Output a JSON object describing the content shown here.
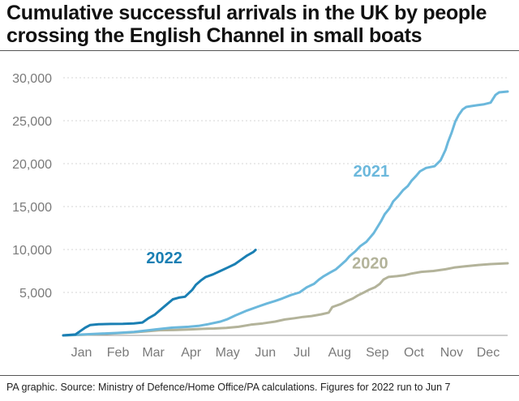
{
  "title": {
    "line1": "Cumulative successful arrivals in the UK by people",
    "line2": "crossing the English Channel in small boats"
  },
  "source": "PA graphic. Source: Ministry of Defence/Home Office/PA calculations. Figures for 2022 run to Jun 7",
  "chart_data": {
    "type": "line",
    "title": "Cumulative successful arrivals in the UK by people crossing the English Channel in small boats",
    "xlabel": "",
    "ylabel": "",
    "x_domain": [
      1,
      366
    ],
    "ylim": [
      0,
      30000
    ],
    "y_ticks": [
      {
        "value": 0,
        "label": ""
      },
      {
        "value": 5000,
        "label": "5,000"
      },
      {
        "value": 10000,
        "label": "10,000"
      },
      {
        "value": 15000,
        "label": "15,000"
      },
      {
        "value": 20000,
        "label": "20,000"
      },
      {
        "value": 25000,
        "label": "25,000"
      },
      {
        "value": 30000,
        "label": "30,000"
      }
    ],
    "x_ticks": [
      {
        "value": 16,
        "label": "Jan"
      },
      {
        "value": 46,
        "label": "Feb"
      },
      {
        "value": 75,
        "label": "Mar"
      },
      {
        "value": 106,
        "label": "Apr"
      },
      {
        "value": 136,
        "label": "May"
      },
      {
        "value": 167,
        "label": "Jun"
      },
      {
        "value": 197,
        "label": "Jul"
      },
      {
        "value": 228,
        "label": "Aug"
      },
      {
        "value": 259,
        "label": "Sep"
      },
      {
        "value": 289,
        "label": "Oct"
      },
      {
        "value": 320,
        "label": "Nov"
      },
      {
        "value": 350,
        "label": "Dec"
      }
    ],
    "grid": true,
    "series": [
      {
        "name": "2020",
        "color": "#b3b39a",
        "label_at": [
          253,
          7800
        ],
        "points": [
          [
            1,
            0
          ],
          [
            15,
            60
          ],
          [
            31,
            150
          ],
          [
            45,
            250
          ],
          [
            59,
            350
          ],
          [
            70,
            480
          ],
          [
            80,
            600
          ],
          [
            92,
            620
          ],
          [
            106,
            700
          ],
          [
            116,
            760
          ],
          [
            125,
            800
          ],
          [
            135,
            880
          ],
          [
            145,
            1000
          ],
          [
            155,
            1250
          ],
          [
            165,
            1400
          ],
          [
            175,
            1600
          ],
          [
            183,
            1850
          ],
          [
            191,
            2000
          ],
          [
            198,
            2150
          ],
          [
            205,
            2250
          ],
          [
            213,
            2450
          ],
          [
            219,
            2650
          ],
          [
            222,
            3300
          ],
          [
            229,
            3650
          ],
          [
            234,
            4000
          ],
          [
            239,
            4300
          ],
          [
            243,
            4650
          ],
          [
            248,
            5000
          ],
          [
            252,
            5300
          ],
          [
            257,
            5600
          ],
          [
            261,
            6000
          ],
          [
            264,
            6500
          ],
          [
            268,
            6800
          ],
          [
            275,
            6900
          ],
          [
            281,
            7000
          ],
          [
            287,
            7200
          ],
          [
            295,
            7400
          ],
          [
            305,
            7500
          ],
          [
            315,
            7700
          ],
          [
            322,
            7900
          ],
          [
            331,
            8050
          ],
          [
            342,
            8200
          ],
          [
            352,
            8300
          ],
          [
            366,
            8400
          ]
        ]
      },
      {
        "name": "2021",
        "color": "#6bb8dc",
        "label_at": [
          254,
          18500
        ],
        "points": [
          [
            1,
            0
          ],
          [
            12,
            80
          ],
          [
            31,
            200
          ],
          [
            45,
            280
          ],
          [
            59,
            400
          ],
          [
            70,
            580
          ],
          [
            77,
            700
          ],
          [
            90,
            900
          ],
          [
            104,
            1000
          ],
          [
            112,
            1100
          ],
          [
            120,
            1300
          ],
          [
            130,
            1600
          ],
          [
            136,
            1900
          ],
          [
            142,
            2300
          ],
          [
            152,
            2900
          ],
          [
            160,
            3300
          ],
          [
            168,
            3700
          ],
          [
            175,
            4000
          ],
          [
            181,
            4300
          ],
          [
            188,
            4700
          ],
          [
            195,
            5000
          ],
          [
            201,
            5600
          ],
          [
            207,
            6000
          ],
          [
            211,
            6500
          ],
          [
            215,
            6900
          ],
          [
            220,
            7300
          ],
          [
            225,
            7700
          ],
          [
            229,
            8200
          ],
          [
            233,
            8700
          ],
          [
            236,
            9200
          ],
          [
            241,
            9800
          ],
          [
            245,
            10400
          ],
          [
            250,
            10900
          ],
          [
            253,
            11400
          ],
          [
            256,
            11900
          ],
          [
            259,
            12600
          ],
          [
            262,
            13300
          ],
          [
            265,
            14100
          ],
          [
            269,
            14800
          ],
          [
            272,
            15600
          ],
          [
            276,
            16200
          ],
          [
            280,
            16900
          ],
          [
            284,
            17400
          ],
          [
            287,
            18000
          ],
          [
            291,
            18600
          ],
          [
            294,
            19100
          ],
          [
            299,
            19500
          ],
          [
            306,
            19700
          ],
          [
            311,
            20400
          ],
          [
            315,
            21600
          ],
          [
            317,
            22500
          ],
          [
            320,
            23600
          ],
          [
            323,
            24900
          ],
          [
            326,
            25700
          ],
          [
            329,
            26300
          ],
          [
            332,
            26600
          ],
          [
            336,
            26700
          ],
          [
            341,
            26800
          ],
          [
            346,
            26900
          ],
          [
            352,
            27100
          ],
          [
            356,
            28000
          ],
          [
            359,
            28300
          ],
          [
            366,
            28400
          ]
        ]
      },
      {
        "name": "2022",
        "color": "#1a7fb3",
        "label_at": [
          84,
          8400
        ],
        "points": [
          [
            1,
            0
          ],
          [
            11,
            100
          ],
          [
            15,
            500
          ],
          [
            19,
            900
          ],
          [
            23,
            1200
          ],
          [
            30,
            1300
          ],
          [
            40,
            1330
          ],
          [
            50,
            1350
          ],
          [
            59,
            1400
          ],
          [
            66,
            1500
          ],
          [
            71,
            2000
          ],
          [
            76,
            2400
          ],
          [
            81,
            3000
          ],
          [
            86,
            3600
          ],
          [
            91,
            4200
          ],
          [
            96,
            4400
          ],
          [
            101,
            4500
          ],
          [
            107,
            5300
          ],
          [
            110,
            5900
          ],
          [
            114,
            6400
          ],
          [
            118,
            6800
          ],
          [
            124,
            7100
          ],
          [
            130,
            7500
          ],
          [
            136,
            7900
          ],
          [
            142,
            8300
          ],
          [
            147,
            8800
          ],
          [
            152,
            9300
          ],
          [
            157,
            9700
          ],
          [
            159,
            9950
          ]
        ]
      }
    ]
  }
}
